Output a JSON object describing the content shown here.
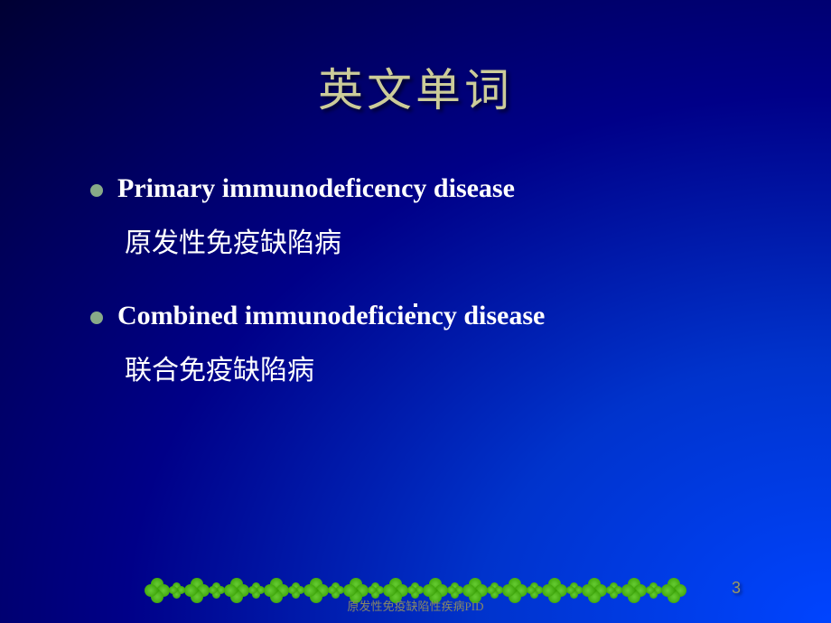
{
  "title": "英文单词",
  "items": [
    {
      "english": "Primary immunodeficency disease",
      "chinese": "原发性免疫缺陷病"
    },
    {
      "english": "Combined immunodeficiency disease",
      "chinese": "联合免疫缺陷病"
    }
  ],
  "footer_text": "原发性免疫缺陷性疾病PID",
  "page_number": "3",
  "colors": {
    "title_color": "#cccc99",
    "text_color": "#ffffff",
    "bullet_color": "#88aa88",
    "footer_color": "#888866",
    "page_color": "#999966",
    "clover_light": "#66cc33",
    "clover_dark": "#339900",
    "bg_dark": "#000033",
    "bg_light": "#0044ff"
  },
  "typography": {
    "title_fontsize": 50,
    "body_fontsize": 30,
    "footer_fontsize": 13,
    "page_fontsize": 18
  }
}
